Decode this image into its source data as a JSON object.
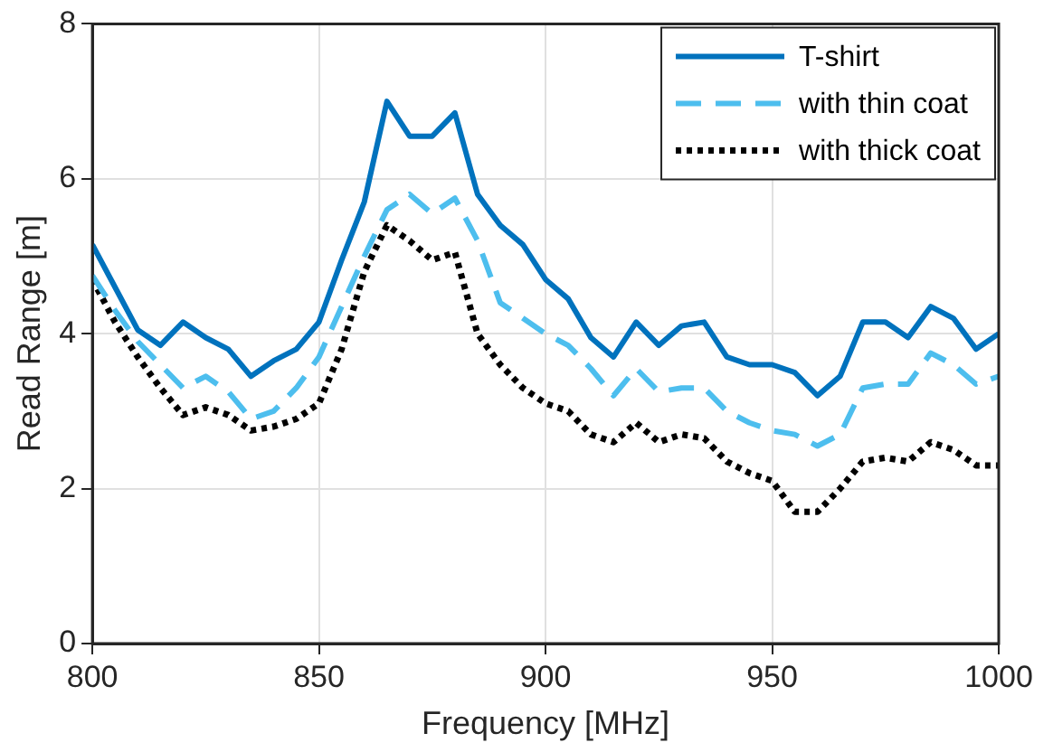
{
  "chart_data": {
    "type": "line",
    "xlabel": "Frequency [MHz]",
    "ylabel": "Read Range [m]",
    "x": [
      800,
      805,
      810,
      815,
      820,
      825,
      830,
      835,
      840,
      845,
      850,
      855,
      860,
      865,
      870,
      875,
      880,
      885,
      890,
      895,
      900,
      905,
      910,
      915,
      920,
      925,
      930,
      935,
      940,
      945,
      950,
      955,
      960,
      965,
      970,
      975,
      980,
      985,
      990,
      995,
      1000
    ],
    "series": [
      {
        "name": "T-shirt",
        "color": "#0072bd",
        "line_style": "solid",
        "values": [
          5.15,
          4.6,
          4.05,
          3.85,
          4.15,
          3.95,
          3.8,
          3.45,
          3.65,
          3.8,
          4.15,
          4.95,
          5.7,
          7.0,
          6.55,
          6.55,
          6.85,
          5.8,
          5.4,
          5.15,
          4.7,
          4.45,
          3.95,
          3.7,
          4.15,
          3.85,
          4.1,
          4.15,
          3.7,
          3.6,
          3.6,
          3.5,
          3.2,
          3.45,
          4.15,
          4.15,
          3.95,
          4.35,
          4.2,
          3.8,
          4.0
        ]
      },
      {
        "name": "with thin coat",
        "color": "#4dbeee",
        "line_style": "dashed",
        "values": [
          4.75,
          4.3,
          3.9,
          3.6,
          3.3,
          3.45,
          3.25,
          2.9,
          3.0,
          3.3,
          3.7,
          4.35,
          5.0,
          5.6,
          5.8,
          5.55,
          5.75,
          5.2,
          4.4,
          4.2,
          4.0,
          3.85,
          3.55,
          3.2,
          3.55,
          3.25,
          3.3,
          3.3,
          3.0,
          2.85,
          2.75,
          2.7,
          2.55,
          2.7,
          3.3,
          3.35,
          3.35,
          3.75,
          3.6,
          3.35,
          3.45
        ]
      },
      {
        "name": "with thick coat",
        "color": "#000000",
        "line_style": "dotted",
        "values": [
          4.7,
          4.15,
          3.7,
          3.3,
          2.95,
          3.05,
          2.95,
          2.75,
          2.8,
          2.9,
          3.1,
          3.8,
          4.8,
          5.4,
          5.2,
          4.95,
          5.05,
          4.0,
          3.6,
          3.3,
          3.1,
          3.0,
          2.7,
          2.6,
          2.85,
          2.6,
          2.7,
          2.65,
          2.35,
          2.2,
          2.1,
          1.7,
          1.7,
          2.0,
          2.35,
          2.4,
          2.35,
          2.6,
          2.5,
          2.3,
          2.3
        ]
      }
    ],
    "xlim": [
      800,
      1000
    ],
    "xticks": [
      800,
      850,
      900,
      950,
      1000
    ],
    "ylim": [
      0,
      8
    ],
    "yticks": [
      0,
      2,
      4,
      6,
      8
    ],
    "grid": true,
    "legend": "top right",
    "marker": "none"
  }
}
